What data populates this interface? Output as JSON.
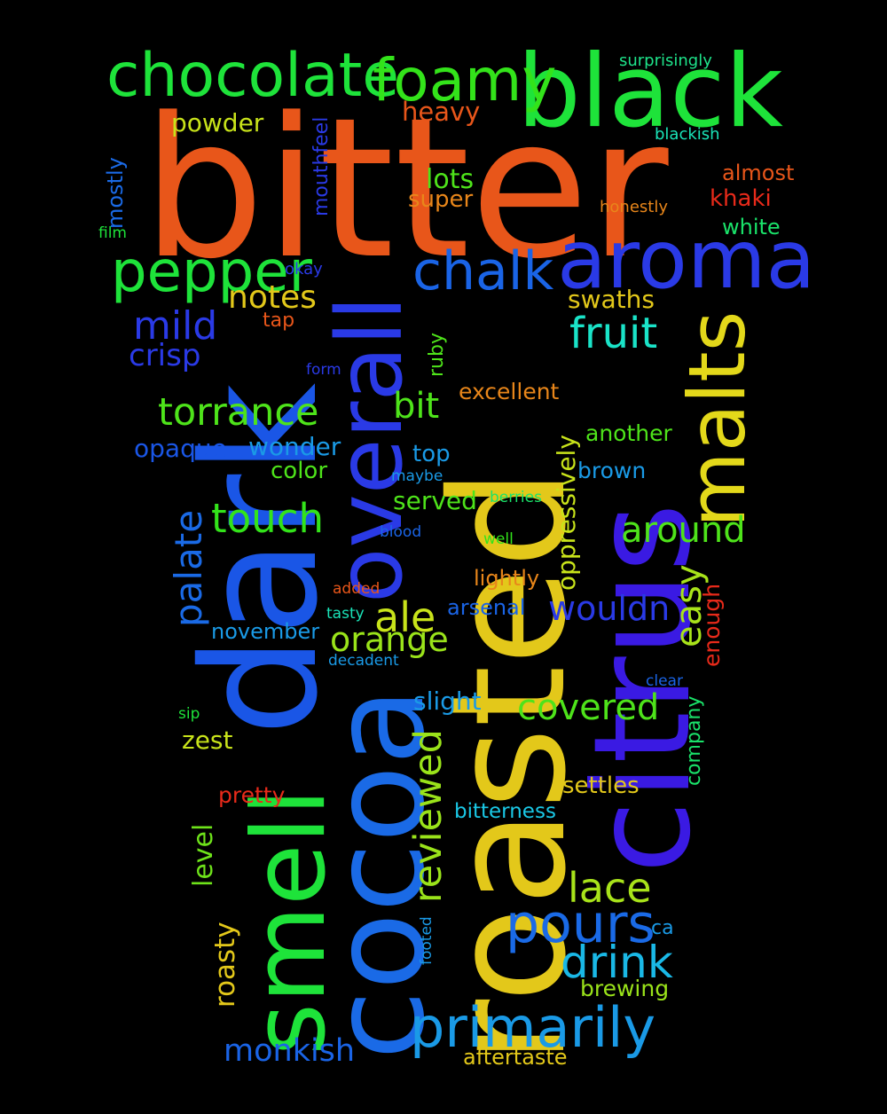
{
  "words": [
    {
      "id": "bitter",
      "text": "bitter",
      "color": "#e8561a",
      "vertical": false
    },
    {
      "id": "roasted",
      "text": "roasted",
      "color": "#e3c81a",
      "vertical": true
    },
    {
      "id": "dark",
      "text": "dark",
      "color": "#1a56e6",
      "vertical": true
    },
    {
      "id": "citrus",
      "text": "citrus",
      "color": "#3a1ae3",
      "vertical": true
    },
    {
      "id": "cocoa",
      "text": "cocoa",
      "color": "#1a6ae6",
      "vertical": true
    },
    {
      "id": "smell",
      "text": "smell",
      "color": "#1ee33a",
      "vertical": true
    },
    {
      "id": "black",
      "text": "black",
      "color": "#1ee33a",
      "vertical": false
    },
    {
      "id": "overall",
      "text": "overall",
      "color": "#2a3ae6",
      "vertical": true
    },
    {
      "id": "aroma",
      "text": "aroma",
      "color": "#2a3ae6",
      "vertical": false
    },
    {
      "id": "malts",
      "text": "malts",
      "color": "#e3d81a",
      "vertical": true
    },
    {
      "id": "chocolate",
      "text": "chocolate",
      "color": "#1ee33a",
      "vertical": false
    },
    {
      "id": "foamy",
      "text": "foamy",
      "color": "#33e31a",
      "vertical": false
    },
    {
      "id": "pepper",
      "text": "pepper",
      "color": "#1ee33a",
      "vertical": false
    },
    {
      "id": "chalk",
      "text": "chalk",
      "color": "#1a64e6",
      "vertical": false
    },
    {
      "id": "primarily",
      "text": "primarily",
      "color": "#1a9ae6",
      "vertical": false
    },
    {
      "id": "pours",
      "text": "pours",
      "color": "#1a6ae6",
      "vertical": false
    },
    {
      "id": "drink",
      "text": "drink",
      "color": "#1ab8e6",
      "vertical": false
    },
    {
      "id": "fruit",
      "text": "fruit",
      "color": "#1ae3c8",
      "vertical": false
    },
    {
      "id": "torrance",
      "text": "torrance",
      "color": "#4ee31a",
      "vertical": false
    },
    {
      "id": "touch",
      "text": "touch",
      "color": "#33e31a",
      "vertical": false
    },
    {
      "id": "mild",
      "text": "mild",
      "color": "#2a3ae6",
      "vertical": false
    },
    {
      "id": "notes",
      "text": "notes",
      "color": "#e3c81a",
      "vertical": false
    },
    {
      "id": "lace",
      "text": "lace",
      "color": "#a8e31a",
      "vertical": false
    },
    {
      "id": "ale",
      "text": "ale",
      "color": "#c8e31a",
      "vertical": false
    },
    {
      "id": "orange",
      "text": "orange",
      "color": "#9ae31a",
      "vertical": false
    },
    {
      "id": "around",
      "text": "around",
      "color": "#4ee31a",
      "vertical": false
    },
    {
      "id": "covered",
      "text": "covered",
      "color": "#4ee31a",
      "vertical": false
    },
    {
      "id": "reviewed",
      "text": "reviewed",
      "color": "#9ae31a",
      "vertical": true
    },
    {
      "id": "palate",
      "text": "palate",
      "color": "#1a6ae6",
      "vertical": true
    },
    {
      "id": "bit",
      "text": "bit",
      "color": "#4ee31a",
      "vertical": false
    },
    {
      "id": "wouldn",
      "text": "wouldn",
      "color": "#2a3ae6",
      "vertical": false
    },
    {
      "id": "monkish",
      "text": "monkish",
      "color": "#1a64e6",
      "vertical": false
    },
    {
      "id": "easy",
      "text": "easy",
      "color": "#a8e31a",
      "vertical": true
    },
    {
      "id": "crisp",
      "text": "crisp",
      "color": "#2a3ae6",
      "vertical": false
    },
    {
      "id": "lots",
      "text": "lots",
      "color": "#4ee31a",
      "vertical": false
    },
    {
      "id": "heavy",
      "text": "heavy",
      "color": "#e8561a",
      "vertical": false
    },
    {
      "id": "powder",
      "text": "powder",
      "color": "#c8e31a",
      "vertical": false
    },
    {
      "id": "super",
      "text": "super",
      "color": "#e8861a",
      "vertical": false
    },
    {
      "id": "swaths",
      "text": "swaths",
      "color": "#e3c81a",
      "vertical": false
    },
    {
      "id": "wonder",
      "text": "wonder",
      "color": "#1a9ae6",
      "vertical": false
    },
    {
      "id": "opaque",
      "text": "opaque",
      "color": "#1a56e6",
      "vertical": false
    },
    {
      "id": "color",
      "text": "color",
      "color": "#4ee31a",
      "vertical": false
    },
    {
      "id": "roasty",
      "text": "roasty",
      "color": "#e3c81a",
      "vertical": true
    },
    {
      "id": "level",
      "text": "level",
      "color": "#6ee31a",
      "vertical": true
    },
    {
      "id": "oppressively",
      "text": "oppressively",
      "color": "#c8e31a",
      "vertical": true
    },
    {
      "id": "another",
      "text": "another",
      "color": "#4ee31a",
      "vertical": false
    },
    {
      "id": "excellent",
      "text": "excellent",
      "color": "#e8861a",
      "vertical": false
    },
    {
      "id": "served",
      "text": "served",
      "color": "#4ee31a",
      "vertical": false
    },
    {
      "id": "top",
      "text": "top",
      "color": "#1a9ae6",
      "vertical": false
    },
    {
      "id": "brown",
      "text": "brown",
      "color": "#1a9ae6",
      "vertical": false
    },
    {
      "id": "settles",
      "text": "settles",
      "color": "#e3c81a",
      "vertical": false
    },
    {
      "id": "slight",
      "text": "slight",
      "color": "#1a9ae6",
      "vertical": false
    },
    {
      "id": "zest",
      "text": "zest",
      "color": "#c8e31a",
      "vertical": false
    },
    {
      "id": "bitterness",
      "text": "bitterness",
      "color": "#1ac8e6",
      "vertical": false
    },
    {
      "id": "brewing",
      "text": "brewing",
      "color": "#9ae31a",
      "vertical": false
    },
    {
      "id": "aftertaste",
      "text": "aftertaste",
      "color": "#e3c81a",
      "vertical": false
    },
    {
      "id": "pretty",
      "text": "pretty",
      "color": "#e82a1a",
      "vertical": false
    },
    {
      "id": "company",
      "text": "company",
      "color": "#1ae36a",
      "vertical": true
    },
    {
      "id": "enough",
      "text": "enough",
      "color": "#e82a1a",
      "vertical": true
    },
    {
      "id": "khaki",
      "text": "khaki",
      "color": "#e82a1a",
      "vertical": false
    },
    {
      "id": "almost",
      "text": "almost",
      "color": "#e8561a",
      "vertical": false
    },
    {
      "id": "white",
      "text": "white",
      "color": "#1ae36a",
      "vertical": false
    },
    {
      "id": "mostly",
      "text": "mostly",
      "color": "#1a6ae6",
      "vertical": true
    },
    {
      "id": "mouthfeel",
      "text": "mouthfeel",
      "color": "#2a3ae6",
      "vertical": true
    },
    {
      "id": "november",
      "text": "november",
      "color": "#1a9ae6",
      "vertical": false
    },
    {
      "id": "arsenal",
      "text": "arsenal",
      "color": "#1a64e6",
      "vertical": false
    },
    {
      "id": "lightly",
      "text": "lightly",
      "color": "#e8861a",
      "vertical": false
    },
    {
      "id": "ruby",
      "text": "ruby",
      "color": "#4ee31a",
      "vertical": true
    },
    {
      "id": "ca",
      "text": "ca",
      "color": "#1a9ae6",
      "vertical": false
    },
    {
      "id": "surprisingly",
      "text": "surprisingly",
      "color": "#1ee38a",
      "vertical": false
    },
    {
      "id": "blackish",
      "text": "blackish",
      "color": "#1ae3b8",
      "vertical": false
    },
    {
      "id": "honestly",
      "text": "honestly",
      "color": "#e8861a",
      "vertical": false
    },
    {
      "id": "film",
      "text": "film",
      "color": "#1ee33a",
      "vertical": false
    },
    {
      "id": "okay",
      "text": "okay",
      "color": "#2a3ae6",
      "vertical": false
    },
    {
      "id": "tap",
      "text": "tap",
      "color": "#e8561a",
      "vertical": false
    },
    {
      "id": "form",
      "text": "form",
      "color": "#2a3ae6",
      "vertical": false
    },
    {
      "id": "maybe",
      "text": "maybe",
      "color": "#1a9ae6",
      "vertical": false
    },
    {
      "id": "berries",
      "text": "berries",
      "color": "#1ae36a",
      "vertical": false
    },
    {
      "id": "blood",
      "text": "blood",
      "color": "#1a64e6",
      "vertical": false
    },
    {
      "id": "well",
      "text": "well",
      "color": "#33e31a",
      "vertical": false
    },
    {
      "id": "added",
      "text": "added",
      "color": "#e8561a",
      "vertical": false
    },
    {
      "id": "tasty",
      "text": "tasty",
      "color": "#1ae3b8",
      "vertical": false
    },
    {
      "id": "decadent",
      "text": "decadent",
      "color": "#1a9ae6",
      "vertical": false
    },
    {
      "id": "clear",
      "text": "clear",
      "color": "#1a64e6",
      "vertical": false
    },
    {
      "id": "sip",
      "text": "sip",
      "color": "#1ee33a",
      "vertical": false
    },
    {
      "id": "footed",
      "text": "footed",
      "color": "#1a9ae6",
      "vertical": true
    }
  ]
}
